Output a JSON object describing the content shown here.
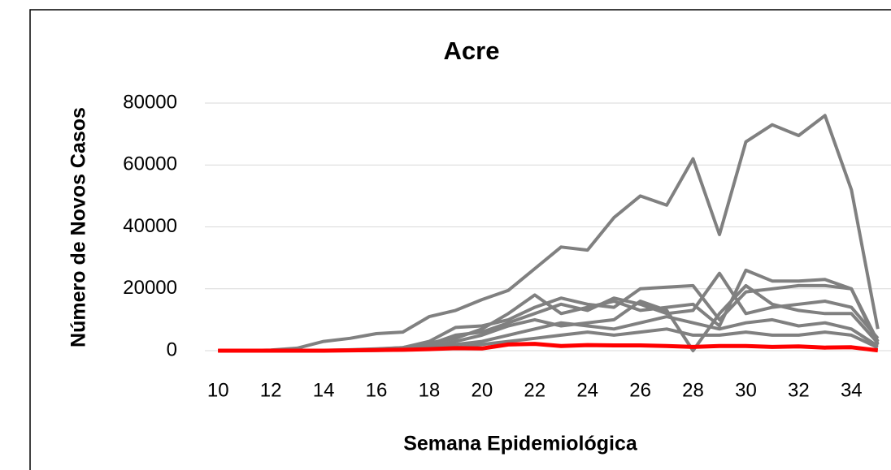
{
  "chart_data": {
    "type": "line",
    "title": "Acre",
    "x_label": "Semana Epidemiológica",
    "y_label": "Número de Novos Casos",
    "x": [
      10,
      11,
      12,
      13,
      14,
      15,
      16,
      17,
      18,
      19,
      20,
      21,
      22,
      23,
      24,
      25,
      26,
      27,
      28,
      29,
      30,
      31,
      32,
      33,
      34,
      35
    ],
    "xlim": [
      9.5,
      35.5
    ],
    "xticks": [
      10,
      12,
      14,
      16,
      18,
      20,
      22,
      24,
      26,
      28,
      30,
      32,
      34
    ],
    "ylim": [
      0,
      80000
    ],
    "yticks": [
      0,
      20000,
      40000,
      60000,
      80000
    ],
    "grid": true,
    "series": [
      {
        "color": "#808080",
        "values": [
          0,
          0,
          200,
          800,
          3000,
          4000,
          5500,
          6000,
          11000,
          13000,
          16500,
          19500,
          26500,
          33500,
          32500,
          43000,
          50000,
          47000,
          62000,
          37500,
          67500,
          73000,
          69500,
          76000,
          52000,
          7000
        ]
      },
      {
        "color": "#808080",
        "values": [
          0,
          0,
          0,
          0,
          100,
          300,
          600,
          1000,
          2500,
          4000,
          7000,
          12000,
          18000,
          12000,
          14000,
          16000,
          13000,
          14000,
          15000,
          8000,
          26000,
          22500,
          22500,
          23000,
          20000,
          3000
        ]
      },
      {
        "color": "#808080",
        "values": [
          0,
          0,
          0,
          0,
          100,
          200,
          500,
          1000,
          3000,
          7500,
          8000,
          10000,
          14000,
          17000,
          15000,
          14000,
          20000,
          20500,
          21000,
          10000,
          19000,
          20000,
          21000,
          21000,
          20000,
          2000
        ]
      },
      {
        "color": "#808080",
        "values": [
          0,
          0,
          0,
          0,
          50,
          100,
          300,
          700,
          2000,
          5000,
          6000,
          9000,
          12000,
          15000,
          13000,
          17000,
          15000,
          12000,
          13000,
          25000,
          12000,
          14000,
          15000,
          16000,
          14000,
          4000
        ]
      },
      {
        "color": "#808080",
        "values": [
          0,
          0,
          0,
          0,
          50,
          100,
          200,
          500,
          1500,
          3000,
          5000,
          8000,
          10000,
          8000,
          9000,
          10000,
          16000,
          13000,
          0,
          12000,
          21000,
          15000,
          13000,
          12000,
          12000,
          2500
        ]
      },
      {
        "color": "#808080",
        "values": [
          0,
          0,
          0,
          0,
          0,
          50,
          100,
          300,
          800,
          2000,
          3000,
          5000,
          7000,
          9000,
          8000,
          7000,
          9000,
          11000,
          9000,
          7000,
          9000,
          10000,
          8000,
          9000,
          7000,
          1500
        ]
      },
      {
        "color": "#808080",
        "values": [
          0,
          0,
          0,
          0,
          0,
          50,
          100,
          200,
          500,
          1000,
          2000,
          3000,
          4000,
          5000,
          6000,
          5000,
          6000,
          7000,
          5000,
          5000,
          6000,
          5000,
          5000,
          6000,
          5000,
          1000
        ]
      },
      {
        "color": "#ff0000",
        "values": [
          0,
          0,
          0,
          0,
          0,
          100,
          200,
          300,
          500,
          800,
          700,
          2000,
          2200,
          1500,
          1800,
          1700,
          1700,
          1500,
          1200,
          1500,
          1500,
          1200,
          1400,
          1000,
          1100,
          100
        ]
      }
    ]
  }
}
